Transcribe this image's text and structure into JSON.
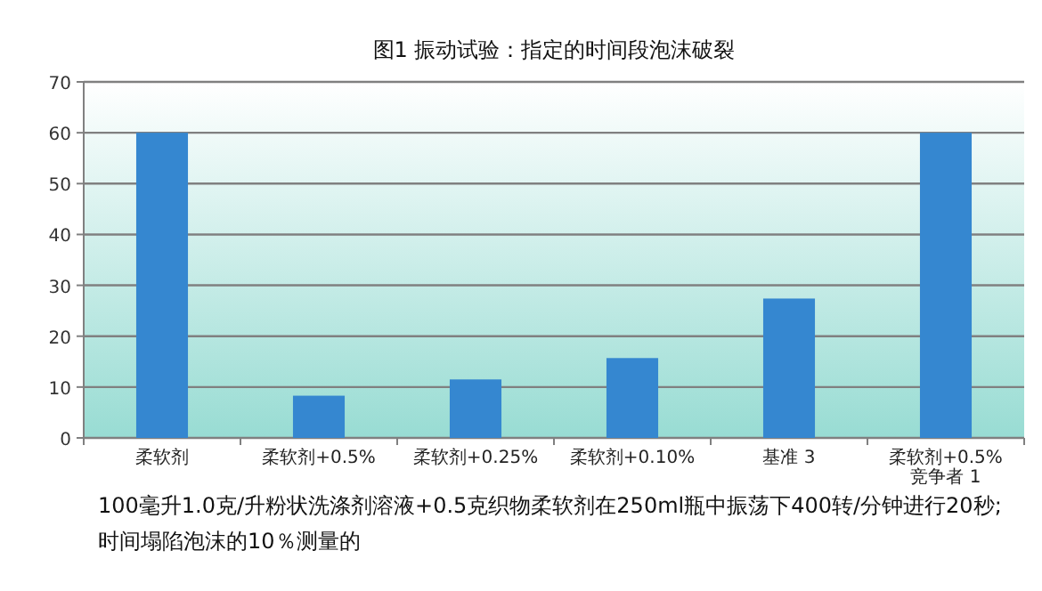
{
  "chart_data": {
    "type": "bar",
    "title": "图1 振动试验：指定的时间段泡沫破裂",
    "categories": [
      "柔软剂",
      "柔软剂+0.5%",
      "柔软剂+0.25%",
      "柔软剂+0.10%",
      "基准 3",
      "柔软剂+0.5%\n竞争者 1"
    ],
    "values": [
      60,
      8.3,
      11.5,
      15.7,
      27.4,
      60
    ],
    "color": "#3587d0",
    "ylim": [
      0,
      70
    ],
    "yticks": [
      0,
      10,
      20,
      30,
      40,
      50,
      60,
      70
    ],
    "grid": "y",
    "annotations": [
      "100毫升1.0克/升粉状洗涤剂溶液+0.5克织物柔软剂在250ml瓶中振荡下400转/分钟进行20秒;",
      "时间塌陷泡沫的10％测量的"
    ]
  }
}
